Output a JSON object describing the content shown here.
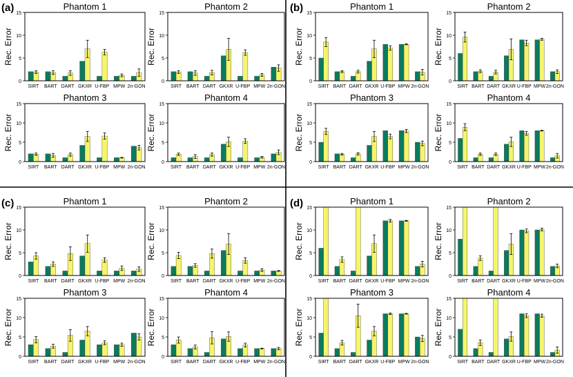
{
  "figure": {
    "colors": {
      "series1": "#0b7a5e",
      "series2": "#f6f56a",
      "bar_stroke": "#444444",
      "error_bar": "#000000"
    }
  },
  "panels": [
    {
      "label": "(a)"
    },
    {
      "label": "(b)"
    },
    {
      "label": "(c)"
    },
    {
      "label": "(d)"
    }
  ],
  "chart_data": [
    {
      "panel": "(a)",
      "title": "Phantom 1",
      "type": "bar",
      "ylabel": "Rec. Error",
      "ylim": [
        0,
        15
      ],
      "yticks": [
        0,
        5,
        10,
        15
      ],
      "categories": [
        "SIRT",
        "BART",
        "DART",
        "GKXR",
        "U-FBP",
        "MPW",
        "2n-GON"
      ],
      "series": [
        {
          "values": [
            2,
            2,
            1,
            4.3,
            1,
            1,
            1
          ]
        },
        {
          "values": [
            1.9,
            1.8,
            1.7,
            7,
            6.3,
            1.2,
            1.8
          ],
          "error": [
            0.3,
            0.4,
            0.5,
            1.9,
            0.6,
            0.3,
            0.8
          ]
        }
      ]
    },
    {
      "panel": "(a)",
      "title": "Phantom 2",
      "type": "bar",
      "ylabel": "Rec. Error",
      "ylim": [
        0,
        15
      ],
      "yticks": [
        0,
        5,
        10,
        15
      ],
      "categories": [
        "SIRT",
        "BART",
        "DART",
        "GKXR",
        "U-FBP",
        "MPW",
        "2n-GON"
      ],
      "series": [
        {
          "values": [
            2,
            2,
            1,
            5.5,
            1,
            1,
            3
          ]
        },
        {
          "values": [
            1.9,
            1.7,
            1.8,
            6.9,
            6.2,
            1.3,
            2.8
          ],
          "error": [
            0.3,
            0.5,
            0.5,
            2.4,
            0.6,
            0.3,
            0.7
          ]
        }
      ]
    },
    {
      "panel": "(a)",
      "title": "Phantom 3",
      "type": "bar",
      "ylabel": "Rec. Error",
      "ylim": [
        0,
        15
      ],
      "yticks": [
        0,
        5,
        10,
        15
      ],
      "categories": [
        "SIRT",
        "BART",
        "DART",
        "GKXR",
        "U-FBP",
        "MPW",
        "2n-GON"
      ],
      "series": [
        {
          "values": [
            2,
            2,
            1,
            4.2,
            1,
            1,
            4
          ]
        },
        {
          "values": [
            1.9,
            1.6,
            1.8,
            6.5,
            6.6,
            1,
            3.6
          ],
          "error": [
            0.3,
            0.5,
            0.4,
            1.3,
            0.8,
            0.1,
            0.6
          ]
        }
      ]
    },
    {
      "panel": "(a)",
      "title": "Phantom 4",
      "type": "bar",
      "ylabel": "Rec. Error",
      "ylim": [
        0,
        15
      ],
      "yticks": [
        0,
        5,
        10,
        15
      ],
      "categories": [
        "SIRT",
        "BART",
        "DART",
        "GKXR",
        "U-FBP",
        "MPW",
        "2n-GON"
      ],
      "series": [
        {
          "values": [
            1,
            1,
            1,
            4.5,
            1,
            1,
            2
          ]
        },
        {
          "values": [
            1.9,
            1.3,
            1.8,
            5.1,
            5.3,
            1.1,
            2.4
          ],
          "error": [
            0.3,
            0.5,
            0.4,
            1.2,
            0.6,
            0.2,
            0.6
          ]
        }
      ]
    },
    {
      "panel": "(b)",
      "title": "Phantom 1",
      "type": "bar",
      "ylabel": "Rec. Error",
      "ylim": [
        0,
        15
      ],
      "yticks": [
        0,
        5,
        10,
        15
      ],
      "categories": [
        "SIRT",
        "BART",
        "DART",
        "GKXR",
        "U-FBP",
        "MPW",
        "2n-GON"
      ],
      "series": [
        {
          "values": [
            5,
            2,
            1,
            4.3,
            8,
            8,
            2
          ]
        },
        {
          "values": [
            8.5,
            2,
            2,
            7,
            7.2,
            8,
            1.9
          ],
          "error": [
            1,
            0.2,
            0.3,
            1.9,
            0.5,
            0.1,
            0.6
          ]
        }
      ]
    },
    {
      "panel": "(b)",
      "title": "Phantom 2",
      "type": "bar",
      "ylabel": "Rec. Error",
      "ylim": [
        0,
        15
      ],
      "yticks": [
        0,
        5,
        10,
        15
      ],
      "categories": [
        "SIRT",
        "BART",
        "DART",
        "GKXR",
        "U-FBP",
        "MPW",
        "2n-GON"
      ],
      "series": [
        {
          "values": [
            6,
            2,
            1,
            5.5,
            9,
            9,
            2
          ]
        },
        {
          "values": [
            9.6,
            2.1,
            1.9,
            6.9,
            8.3,
            9.1,
            2
          ],
          "error": [
            1.1,
            0.3,
            0.4,
            2.3,
            0.6,
            0.2,
            0.4
          ]
        }
      ]
    },
    {
      "panel": "(b)",
      "title": "Phantom 3",
      "type": "bar",
      "ylabel": "Rec. Error",
      "ylim": [
        0,
        15
      ],
      "yticks": [
        0,
        5,
        10,
        15
      ],
      "categories": [
        "SIRT",
        "BART",
        "DART",
        "GKXR",
        "U-FBP",
        "MPW",
        "2n-GON"
      ],
      "series": [
        {
          "values": [
            5,
            2,
            1,
            4.2,
            8,
            8,
            5
          ]
        },
        {
          "values": [
            7.8,
            1.9,
            2,
            6.5,
            6.5,
            7.9,
            4.7
          ],
          "error": [
            0.8,
            0.2,
            0.3,
            1.3,
            0.6,
            0.4,
            0.6
          ]
        }
      ]
    },
    {
      "panel": "(b)",
      "title": "Phantom 4",
      "type": "bar",
      "ylabel": "Rec. Error",
      "ylim": [
        0,
        15
      ],
      "yticks": [
        0,
        5,
        10,
        15
      ],
      "categories": [
        "SIRT",
        "BART",
        "DART",
        "GKXR",
        "U-FBP",
        "MPW",
        "2n-GON"
      ],
      "series": [
        {
          "values": [
            6,
            1,
            1,
            4.5,
            8,
            8,
            1
          ]
        },
        {
          "values": [
            8.9,
            1.9,
            1.9,
            5.1,
            7.3,
            8,
            1.5
          ],
          "error": [
            0.9,
            0.3,
            0.3,
            1.2,
            0.5,
            0.1,
            0.6
          ]
        }
      ]
    },
    {
      "panel": "(c)",
      "title": "Phantom 1",
      "type": "bar",
      "ylabel": "Rec. Error",
      "ylim": [
        0,
        15
      ],
      "yticks": [
        0,
        5,
        10,
        15
      ],
      "categories": [
        "SIRT",
        "BART",
        "DART",
        "GKXR",
        "U-FBP",
        "MPW",
        "2n-GON"
      ],
      "series": [
        {
          "values": [
            3,
            2,
            1,
            4.3,
            1,
            1,
            1
          ]
        },
        {
          "values": [
            4.3,
            2.5,
            4.8,
            7,
            3.4,
            1.6,
            1.4
          ],
          "error": [
            0.7,
            0.5,
            1.5,
            1.9,
            0.5,
            0.5,
            0.5
          ]
        }
      ]
    },
    {
      "panel": "(c)",
      "title": "Phantom 2",
      "type": "bar",
      "ylabel": "Rec. Error",
      "ylim": [
        0,
        15
      ],
      "yticks": [
        0,
        5,
        10,
        15
      ],
      "categories": [
        "SIRT",
        "BART",
        "DART",
        "GKXR",
        "U-FBP",
        "MPW",
        "2n-GON"
      ],
      "series": [
        {
          "values": [
            2,
            2,
            1,
            5.5,
            1,
            1,
            1
          ]
        },
        {
          "values": [
            4.4,
            2.2,
            4.8,
            6.9,
            3.3,
            1.2,
            1
          ],
          "error": [
            0.7,
            0.4,
            1,
            2.3,
            0.6,
            0.3,
            0.1
          ]
        }
      ]
    },
    {
      "panel": "(c)",
      "title": "Phantom 3",
      "type": "bar",
      "ylabel": "Rec. Error",
      "ylim": [
        0,
        15
      ],
      "yticks": [
        0,
        5,
        10,
        15
      ],
      "categories": [
        "SIRT",
        "BART",
        "DART",
        "GKXR",
        "U-FBP",
        "MPW",
        "2n-GON"
      ],
      "series": [
        {
          "values": [
            3,
            2,
            1,
            4.2,
            3,
            3,
            6
          ]
        },
        {
          "values": [
            4.3,
            2.6,
            5.4,
            6.5,
            3.5,
            3,
            5
          ],
          "error": [
            0.8,
            0.5,
            1.5,
            1.2,
            0.5,
            0.4,
            0.8
          ]
        }
      ]
    },
    {
      "panel": "(c)",
      "title": "Phantom 4",
      "type": "bar",
      "ylabel": "Rec. Error",
      "ylim": [
        0,
        15
      ],
      "yticks": [
        0,
        5,
        10,
        15
      ],
      "categories": [
        "SIRT",
        "BART",
        "DART",
        "GKXR",
        "U-FBP",
        "MPW",
        "2n-GON"
      ],
      "series": [
        {
          "values": [
            3,
            2,
            1,
            4.5,
            2,
            2,
            2
          ]
        },
        {
          "values": [
            4.2,
            2.4,
            4.8,
            5.1,
            2.9,
            2,
            2
          ],
          "error": [
            0.8,
            0.5,
            1.6,
            1.2,
            0.5,
            0.1,
            0.3
          ]
        }
      ]
    },
    {
      "panel": "(d)",
      "title": "Phantom 1",
      "type": "bar",
      "ylabel": "Rec. Error",
      "ylim": [
        0,
        15
      ],
      "yticks": [
        0,
        5,
        10,
        15
      ],
      "categories": [
        "SIRT",
        "BART",
        "DART",
        "GKXR",
        "U-FBP",
        "MPW",
        "2n-GON"
      ],
      "series": [
        {
          "values": [
            6,
            2,
            1,
            4.3,
            12,
            12,
            2
          ]
        },
        {
          "values": [
            15,
            3.5,
            15,
            7,
            12,
            12,
            2.5
          ],
          "error": [
            0,
            0.6,
            0,
            1.9,
            0.3,
            0.1,
            0.6
          ]
        }
      ]
    },
    {
      "panel": "(d)",
      "title": "Phantom 2",
      "type": "bar",
      "ylabel": "Rec. Error",
      "ylim": [
        0,
        15
      ],
      "yticks": [
        0,
        5,
        10,
        15
      ],
      "categories": [
        "SIRT",
        "BART",
        "DART",
        "GKXR",
        "U-FBP",
        "MPW",
        "2n-GON"
      ],
      "series": [
        {
          "values": [
            8,
            2,
            1,
            5.5,
            10,
            10,
            2
          ]
        },
        {
          "values": [
            15,
            3.8,
            15,
            6.9,
            9.8,
            10.1,
            2.1
          ],
          "error": [
            0,
            0.5,
            0,
            2.3,
            0.4,
            0.3,
            0.4
          ]
        }
      ]
    },
    {
      "panel": "(d)",
      "title": "Phantom 3",
      "type": "bar",
      "ylabel": "Rec. Error",
      "ylim": [
        0,
        15
      ],
      "yticks": [
        0,
        5,
        10,
        15
      ],
      "categories": [
        "SIRT",
        "BART",
        "DART",
        "GKXR",
        "U-FBP",
        "MPW",
        "2n-GON"
      ],
      "series": [
        {
          "values": [
            6,
            2,
            1,
            4.2,
            11,
            11,
            5
          ]
        },
        {
          "values": [
            15,
            3.5,
            10.5,
            6.5,
            11,
            11,
            4.6
          ],
          "error": [
            0,
            0.6,
            3,
            1.2,
            0.2,
            0.1,
            0.8
          ]
        }
      ]
    },
    {
      "panel": "(d)",
      "title": "Phantom 4",
      "type": "bar",
      "ylabel": "Rec. Error",
      "ylim": [
        0,
        15
      ],
      "yticks": [
        0,
        5,
        10,
        15
      ],
      "categories": [
        "SIRT",
        "BART",
        "DART",
        "GKXR",
        "U-FBP",
        "MPW",
        "2n-GON"
      ],
      "series": [
        {
          "values": [
            7,
            2,
            1,
            4.5,
            11,
            11,
            1
          ]
        },
        {
          "values": [
            15,
            3.5,
            15,
            5.1,
            10.5,
            10.5,
            1.6
          ],
          "error": [
            0,
            0.7,
            0,
            1.2,
            0.5,
            0.4,
            0.8
          ]
        }
      ]
    }
  ]
}
